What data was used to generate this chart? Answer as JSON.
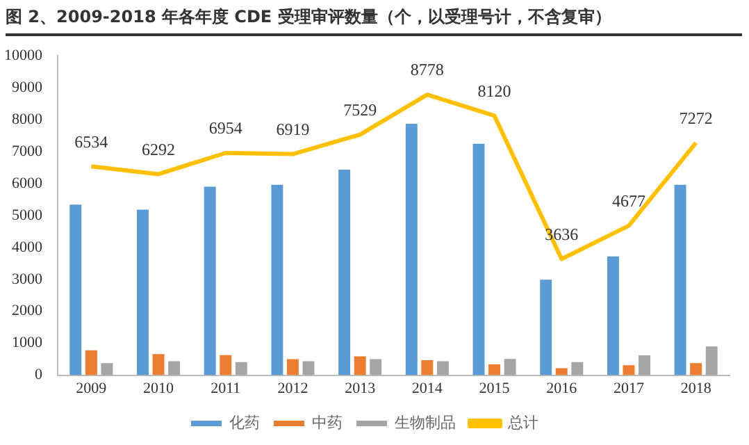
{
  "chart_data": {
    "type": "bar",
    "title": "图 2、2009-2018 年各年度 CDE 受理审评数量（个，以受理号计，不含复审）",
    "categories": [
      "2009",
      "2010",
      "2011",
      "2012",
      "2013",
      "2014",
      "2015",
      "2016",
      "2017",
      "2018"
    ],
    "series": [
      {
        "name": "化药",
        "color": "#5b9bd5",
        "values": [
          5340,
          5180,
          5900,
          5960,
          6430,
          7870,
          7240,
          2990,
          3720,
          5960
        ]
      },
      {
        "name": "中药",
        "color": "#ed7d31",
        "values": [
          780,
          660,
          630,
          500,
          590,
          470,
          340,
          220,
          310,
          380
        ]
      },
      {
        "name": "生物制品",
        "color": "#a5a5a5",
        "values": [
          380,
          440,
          410,
          440,
          500,
          440,
          510,
          410,
          620,
          900
        ]
      },
      {
        "name": "总计",
        "type": "line",
        "color": "#ffc000",
        "marker": "none",
        "values": [
          6534,
          6292,
          6954,
          6919,
          7529,
          8778,
          8120,
          3636,
          4677,
          7272
        ],
        "value_labels": [
          "6534",
          "6292",
          "6954",
          "6919",
          "7529",
          "8778",
          "8120",
          "3636",
          "4677",
          "7272"
        ]
      }
    ],
    "ylim": [
      0,
      10000
    ],
    "yticks": [
      0,
      1000,
      2000,
      3000,
      4000,
      5000,
      6000,
      7000,
      8000,
      9000,
      10000
    ],
    "grid": false,
    "legend": "bottom"
  }
}
